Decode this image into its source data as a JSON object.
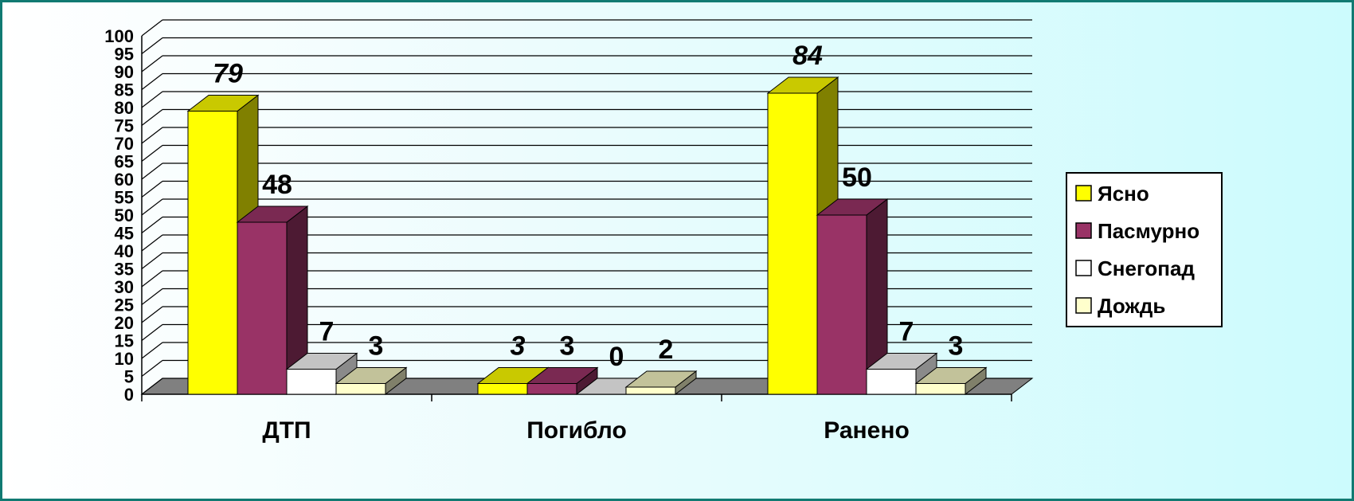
{
  "chart_data": {
    "type": "bar",
    "title": "",
    "xlabel": "",
    "ylabel": "",
    "ylim": [
      0,
      100
    ],
    "ytick_step": 5,
    "grid": true,
    "style": "3d-clustered",
    "legend_position": "right",
    "categories": [
      "ДТП",
      "Погибло",
      "Ранено"
    ],
    "series": [
      {
        "name": "Ясно",
        "values": [
          79,
          3,
          84
        ],
        "color": "#ffff00",
        "side_color": "#808000",
        "top_color": "#c9c900",
        "label_italic": [
          true,
          true,
          true
        ]
      },
      {
        "name": "Пасмурно",
        "values": [
          48,
          3,
          50
        ],
        "color": "#993366",
        "side_color": "#4d1a33",
        "top_color": "#7a2952",
        "label_italic": [
          false,
          false,
          false
        ]
      },
      {
        "name": "Снегопад",
        "values": [
          7,
          0,
          7
        ],
        "color": "#ffffff",
        "side_color": "#8a8a8a",
        "top_color": "#c4c4c4",
        "label_italic": [
          false,
          false,
          false
        ]
      },
      {
        "name": "Дождь",
        "values": [
          3,
          2,
          3
        ],
        "color": "#ffffcc",
        "side_color": "#80806a",
        "top_color": "#c2c29a",
        "label_italic": [
          false,
          false,
          false
        ]
      }
    ],
    "data_labels": [
      [
        "79",
        "3",
        "84"
      ],
      [
        "48",
        "3",
        "50"
      ],
      [
        "7",
        "0",
        "7"
      ],
      [
        "3",
        "2",
        "3"
      ]
    ],
    "floor_color": "#808080",
    "frame_color": "#117a72"
  }
}
